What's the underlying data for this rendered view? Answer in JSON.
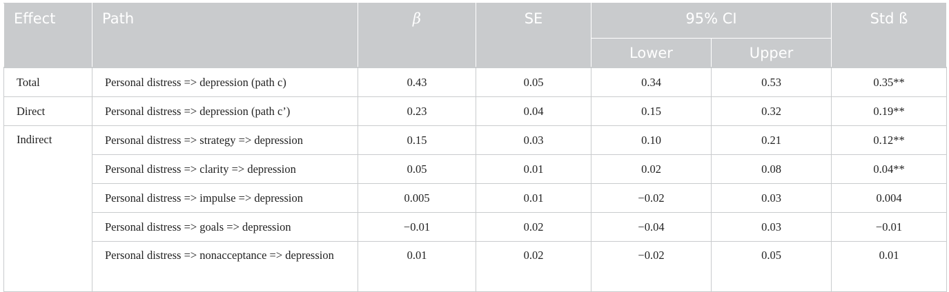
{
  "headers": {
    "effect": "Effect",
    "path": "Path",
    "beta": "β",
    "se": "SE",
    "ci": "95% CI",
    "lower": "Lower",
    "upper": "Upper",
    "std_beta": "Std ß"
  },
  "rows": [
    {
      "effect": "Total",
      "path": "Personal distress => depression (path c)",
      "beta": "0.43",
      "se": "0.05",
      "lower": "0.34",
      "upper": "0.53",
      "std": "0.35**"
    },
    {
      "effect": "Direct",
      "path": "Personal distress => depression (path c’)",
      "beta": "0.23",
      "se": "0.04",
      "lower": "0.15",
      "upper": "0.32",
      "std": "0.19**"
    },
    {
      "effect": "Indirect",
      "path": "Personal distress => strategy => depression",
      "beta": "0.15",
      "se": "0.03",
      "lower": "0.10",
      "upper": "0.21",
      "std": "0.12**"
    },
    {
      "effect": "",
      "path": "Personal distress => clarity => depression",
      "beta": "0.05",
      "se": "0.01",
      "lower": "0.02",
      "upper": "0.08",
      "std": "0.04**"
    },
    {
      "effect": "",
      "path": "Personal distress => impulse => depression",
      "beta": "0.005",
      "se": "0.01",
      "lower": "−0.02",
      "upper": "0.03",
      "std": "0.004"
    },
    {
      "effect": "",
      "path": "Personal distress => goals => depression",
      "beta": "−0.01",
      "se": "0.02",
      "lower": "−0.04",
      "upper": "0.03",
      "std": "−0.01"
    },
    {
      "effect": "",
      "path": "Personal distress => nonacceptance => depression",
      "beta": "0.01",
      "se": "0.02",
      "lower": "−0.02",
      "upper": "0.05",
      "std": "0.01"
    }
  ]
}
